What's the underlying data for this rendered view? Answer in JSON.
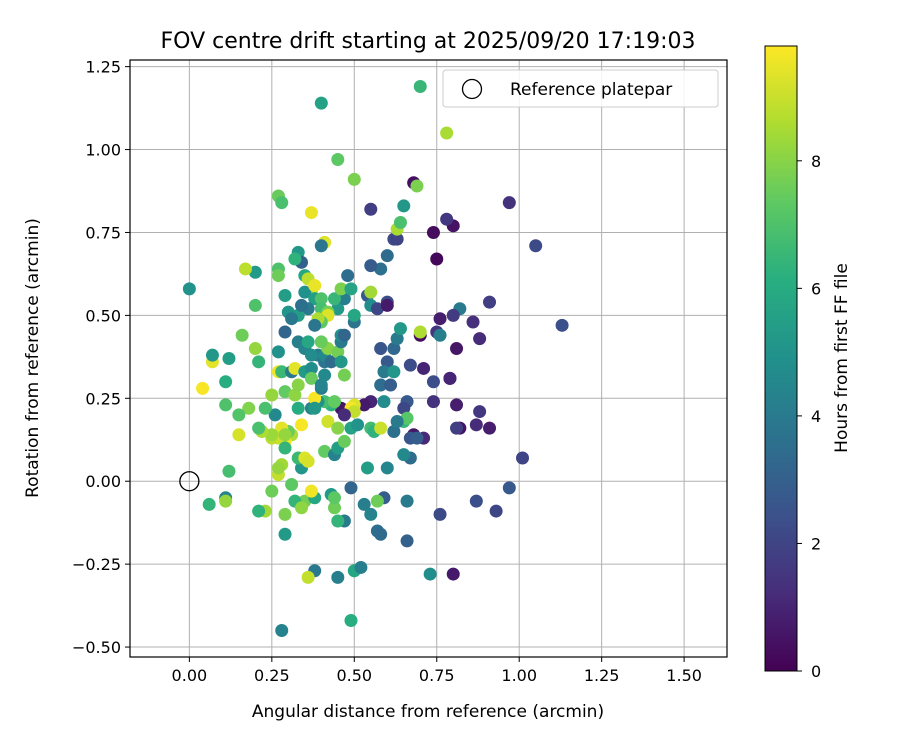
{
  "chart_data": {
    "type": "scatter",
    "title": "FOV centre drift starting at 2025/09/20 17:19:03",
    "xlabel": "Angular distance from reference (arcmin)",
    "ylabel": "Rotation from reference (arcmin)",
    "xlim": [
      -0.18,
      1.63
    ],
    "ylim": [
      -0.53,
      1.27
    ],
    "xticks": [
      0.0,
      0.25,
      0.5,
      0.75,
      1.0,
      1.25,
      1.5
    ],
    "xtick_labels": [
      "0.00",
      "0.25",
      "0.50",
      "0.75",
      "1.00",
      "1.25",
      "1.50"
    ],
    "yticks": [
      -0.5,
      -0.25,
      0.0,
      0.25,
      0.5,
      0.75,
      1.0,
      1.25
    ],
    "ytick_labels": [
      "−0.50",
      "−0.25",
      "0.00",
      "0.25",
      "0.50",
      "0.75",
      "1.00",
      "1.25"
    ],
    "grid": true,
    "legend": {
      "position": "top-right",
      "entries": [
        "Reference platepar"
      ]
    },
    "reference_point": {
      "x": 0.0,
      "y": 0.0,
      "label": "Reference platepar"
    },
    "colorbar": {
      "label": "Hours from first FF file",
      "min": 0,
      "max": 9.8,
      "ticks": [
        0,
        2,
        4,
        6,
        8
      ],
      "tick_labels": [
        "0",
        "2",
        "4",
        "6",
        "8"
      ],
      "colormap": "viridis"
    },
    "points": [
      [
        0.68,
        0.9,
        0.4
      ],
      [
        0.8,
        0.77,
        0.5
      ],
      [
        0.74,
        0.75,
        0.3
      ],
      [
        0.75,
        0.67,
        0.2
      ],
      [
        0.97,
        0.84,
        1.4
      ],
      [
        0.78,
        0.79,
        1.6
      ],
      [
        1.05,
        0.71,
        2.2
      ],
      [
        1.13,
        0.47,
        2.4
      ],
      [
        0.91,
        0.54,
        1.8
      ],
      [
        0.86,
        0.48,
        1.3
      ],
      [
        0.82,
        0.52,
        4.0
      ],
      [
        0.76,
        0.49,
        0.8
      ],
      [
        0.8,
        0.5,
        1.7
      ],
      [
        0.88,
        0.43,
        1.2
      ],
      [
        0.81,
        0.4,
        0.6
      ],
      [
        0.7,
        0.44,
        0.3
      ],
      [
        0.75,
        0.45,
        1.5
      ],
      [
        0.76,
        0.44,
        4.2
      ],
      [
        0.7,
        0.45,
        8.6
      ],
      [
        0.74,
        0.3,
        2.3
      ],
      [
        0.79,
        0.31,
        0.7
      ],
      [
        0.79,
        0.31,
        1.0
      ],
      [
        0.71,
        0.34,
        1.0
      ],
      [
        0.67,
        0.35,
        2.3
      ],
      [
        0.66,
        0.24,
        2.7
      ],
      [
        0.74,
        0.24,
        1.4
      ],
      [
        0.81,
        0.23,
        0.8
      ],
      [
        0.88,
        0.21,
        1.6
      ],
      [
        0.87,
        0.17,
        1.2
      ],
      [
        0.82,
        0.16,
        0.5
      ],
      [
        0.81,
        0.16,
        1.8
      ],
      [
        0.91,
        0.16,
        0.8
      ],
      [
        1.01,
        0.07,
        2.0
      ],
      [
        0.71,
        0.13,
        1.1
      ],
      [
        0.68,
        0.14,
        0.6
      ],
      [
        0.67,
        0.13,
        2.6
      ],
      [
        0.67,
        0.07,
        3.4
      ],
      [
        0.65,
        0.08,
        4.6
      ],
      [
        0.65,
        0.22,
        2.1
      ],
      [
        0.69,
        0.13,
        2.9
      ],
      [
        0.87,
        -0.06,
        2.4
      ],
      [
        0.97,
        -0.02,
        2.7
      ],
      [
        0.93,
        -0.09,
        2.1
      ],
      [
        0.76,
        -0.1,
        2.2
      ],
      [
        0.73,
        -0.28,
        4.8
      ],
      [
        0.8,
        -0.28,
        0.7
      ],
      [
        0.66,
        -0.18,
        3.0
      ],
      [
        0.66,
        -0.06,
        4.0
      ],
      [
        0.59,
        -0.05,
        2.9
      ],
      [
        0.57,
        -0.06,
        7.6
      ],
      [
        0.57,
        -0.15,
        3.5
      ],
      [
        0.58,
        -0.16,
        3.4
      ],
      [
        0.53,
        -0.07,
        4.2
      ],
      [
        0.55,
        -0.1,
        4.3
      ],
      [
        0.49,
        -0.02,
        3.2
      ],
      [
        0.5,
        -0.27,
        5.8
      ],
      [
        0.52,
        -0.26,
        4.2
      ],
      [
        0.45,
        -0.29,
        4.2
      ],
      [
        0.49,
        -0.42,
        6.1
      ],
      [
        0.47,
        -0.12,
        4.0
      ],
      [
        0.45,
        -0.12,
        6.4
      ],
      [
        0.38,
        -0.27,
        3.9
      ],
      [
        0.36,
        -0.29,
        8.9
      ],
      [
        0.28,
        -0.45,
        4.3
      ],
      [
        0.43,
        -0.04,
        5.3
      ],
      [
        0.44,
        -0.08,
        7.6
      ],
      [
        0.44,
        -0.05,
        7.3
      ],
      [
        0.35,
        -0.06,
        7.7
      ],
      [
        0.38,
        -0.05,
        5.8
      ],
      [
        0.37,
        -0.03,
        9.6
      ],
      [
        0.32,
        -0.06,
        6.4
      ],
      [
        0.34,
        -0.08,
        8.1
      ],
      [
        0.29,
        -0.1,
        7.8
      ],
      [
        0.29,
        -0.16,
        5.3
      ],
      [
        0.23,
        -0.09,
        8.4
      ],
      [
        0.25,
        -0.03,
        7.6
      ],
      [
        0.21,
        -0.09,
        6.3
      ],
      [
        0.31,
        -0.01,
        7.3
      ],
      [
        0.27,
        0.02,
        8.9
      ],
      [
        0.28,
        0.05,
        8.4
      ],
      [
        0.34,
        0.04,
        5.1
      ],
      [
        0.27,
        0.04,
        8.2
      ],
      [
        0.33,
        0.07,
        6.6
      ],
      [
        0.35,
        0.07,
        9.3
      ],
      [
        0.36,
        0.06,
        9.2
      ],
      [
        0.41,
        0.09,
        7.4
      ],
      [
        0.44,
        0.08,
        4.3
      ],
      [
        0.54,
        0.04,
        5.4
      ],
      [
        0.6,
        0.04,
        4.5
      ],
      [
        0.45,
        0.1,
        5.4
      ],
      [
        0.47,
        0.12,
        7.5
      ],
      [
        0.49,
        0.16,
        5.6
      ],
      [
        0.51,
        0.17,
        5.0
      ],
      [
        0.55,
        0.16,
        6.7
      ],
      [
        0.56,
        0.15,
        6.3
      ],
      [
        0.58,
        0.16,
        9.0
      ],
      [
        0.62,
        0.15,
        3.6
      ],
      [
        0.65,
        0.18,
        6.5
      ],
      [
        0.66,
        0.19,
        7.2
      ],
      [
        0.63,
        0.18,
        4.0
      ],
      [
        0.59,
        0.24,
        4.7
      ],
      [
        0.58,
        0.29,
        3.5
      ],
      [
        0.61,
        0.29,
        2.9
      ],
      [
        0.6,
        0.36,
        2.7
      ],
      [
        0.59,
        0.33,
        4.0
      ],
      [
        0.62,
        0.4,
        3.3
      ],
      [
        0.63,
        0.43,
        4.0
      ],
      [
        0.64,
        0.46,
        5.2
      ],
      [
        0.62,
        0.33,
        5.1
      ],
      [
        0.58,
        0.4,
        2.6
      ],
      [
        0.55,
        0.24,
        1.0
      ],
      [
        0.53,
        0.23,
        0.7
      ],
      [
        0.5,
        0.23,
        9.3
      ],
      [
        0.46,
        0.22,
        0.6
      ],
      [
        0.49,
        0.22,
        9.7
      ],
      [
        0.5,
        0.21,
        8.9
      ],
      [
        0.47,
        0.2,
        1.2
      ],
      [
        0.43,
        0.23,
        6.3
      ],
      [
        0.41,
        0.24,
        6.8
      ],
      [
        0.44,
        0.24,
        7.4
      ],
      [
        0.42,
        0.18,
        9.1
      ],
      [
        0.45,
        0.16,
        8.0
      ],
      [
        0.39,
        0.24,
        4.9
      ],
      [
        0.37,
        0.22,
        4.4
      ],
      [
        0.38,
        0.25,
        9.7
      ],
      [
        0.38,
        0.22,
        5.2
      ],
      [
        0.33,
        0.22,
        6.0
      ],
      [
        0.34,
        0.17,
        9.7
      ],
      [
        0.31,
        0.14,
        8.6
      ],
      [
        0.3,
        0.15,
        7.5
      ],
      [
        0.28,
        0.16,
        9.4
      ],
      [
        0.29,
        0.12,
        9.6
      ],
      [
        0.27,
        0.13,
        9.0
      ],
      [
        0.25,
        0.13,
        8.8
      ],
      [
        0.28,
        0.13,
        9.0
      ],
      [
        0.29,
        0.14,
        8.2
      ],
      [
        0.29,
        0.1,
        6.4
      ],
      [
        0.26,
        0.2,
        4.6
      ],
      [
        0.25,
        0.14,
        8.3
      ],
      [
        0.22,
        0.15,
        8.6
      ],
      [
        0.21,
        0.16,
        6.9
      ],
      [
        0.25,
        0.26,
        8.2
      ],
      [
        0.23,
        0.22,
        6.9
      ],
      [
        0.18,
        0.22,
        7.9
      ],
      [
        0.15,
        0.14,
        9.2
      ],
      [
        0.15,
        0.2,
        7.1
      ],
      [
        0.11,
        0.23,
        7.0
      ],
      [
        0.11,
        0.3,
        6.1
      ],
      [
        0.04,
        0.28,
        9.7
      ],
      [
        0.07,
        0.36,
        9.4
      ],
      [
        0.07,
        0.38,
        5.2
      ],
      [
        0.12,
        0.37,
        5.4
      ],
      [
        0.16,
        0.44,
        7.6
      ],
      [
        0.2,
        0.4,
        8.2
      ],
      [
        0.21,
        0.36,
        6.4
      ],
      [
        0.27,
        0.33,
        9.6
      ],
      [
        0.27,
        0.39,
        4.9
      ],
      [
        0.28,
        0.33,
        6.6
      ],
      [
        0.31,
        0.33,
        4.0
      ],
      [
        0.29,
        0.27,
        7.4
      ],
      [
        0.32,
        0.26,
        8.1
      ],
      [
        0.33,
        0.29,
        8.0
      ],
      [
        0.32,
        0.34,
        9.4
      ],
      [
        0.35,
        0.33,
        5.3
      ],
      [
        0.37,
        0.34,
        4.7
      ],
      [
        0.37,
        0.31,
        7.5
      ],
      [
        0.4,
        0.28,
        4.1
      ],
      [
        0.4,
        0.29,
        4.4
      ],
      [
        0.41,
        0.32,
        4.6
      ],
      [
        0.41,
        0.36,
        3.8
      ],
      [
        0.39,
        0.38,
        3.9
      ],
      [
        0.41,
        0.38,
        4.6
      ],
      [
        0.42,
        0.4,
        8.0
      ],
      [
        0.43,
        0.36,
        3.4
      ],
      [
        0.45,
        0.39,
        7.7
      ],
      [
        0.46,
        0.36,
        5.2
      ],
      [
        0.47,
        0.32,
        7.7
      ],
      [
        0.46,
        0.42,
        4.0
      ],
      [
        0.46,
        0.44,
        4.8
      ],
      [
        0.45,
        0.52,
        5.2
      ],
      [
        0.47,
        0.44,
        3.2
      ],
      [
        0.47,
        0.55,
        4.2
      ],
      [
        0.44,
        0.55,
        6.5
      ],
      [
        0.46,
        0.58,
        7.8
      ],
      [
        0.49,
        0.58,
        5.7
      ],
      [
        0.5,
        0.48,
        3.8
      ],
      [
        0.5,
        0.5,
        5.8
      ],
      [
        0.48,
        0.62,
        3.5
      ],
      [
        0.54,
        0.56,
        2.7
      ],
      [
        0.55,
        0.57,
        8.4
      ],
      [
        0.55,
        0.53,
        4.7
      ],
      [
        0.57,
        0.52,
        2.1
      ],
      [
        0.6,
        0.54,
        2.3
      ],
      [
        0.6,
        0.53,
        0.7
      ],
      [
        0.58,
        0.64,
        3.6
      ],
      [
        0.62,
        0.73,
        2.2
      ],
      [
        0.63,
        0.73,
        2.0
      ],
      [
        0.63,
        0.76,
        8.5
      ],
      [
        0.64,
        0.78,
        6.9
      ],
      [
        0.65,
        0.83,
        5.2
      ],
      [
        0.69,
        0.89,
        7.8
      ],
      [
        0.6,
        0.68,
        3.4
      ],
      [
        0.55,
        0.65,
        2.8
      ],
      [
        0.55,
        0.82,
        1.8
      ],
      [
        0.5,
        0.91,
        7.8
      ],
      [
        0.45,
        0.97,
        7.3
      ],
      [
        0.4,
        1.14,
        5.6
      ],
      [
        0.7,
        1.19,
        6.5
      ],
      [
        0.78,
        1.05,
        8.5
      ],
      [
        0.27,
        0.86,
        7.5
      ],
      [
        0.28,
        0.84,
        6.9
      ],
      [
        0.37,
        0.81,
        9.5
      ],
      [
        0.41,
        0.72,
        9.3
      ],
      [
        0.4,
        0.71,
        3.8
      ],
      [
        0.33,
        0.69,
        5.2
      ],
      [
        0.34,
        0.66,
        3.0
      ],
      [
        0.32,
        0.67,
        6.3
      ],
      [
        0.27,
        0.64,
        7.0
      ],
      [
        0.27,
        0.62,
        7.6
      ],
      [
        0.35,
        0.62,
        5.8
      ],
      [
        0.36,
        0.61,
        8.8
      ],
      [
        0.37,
        0.57,
        8.5
      ],
      [
        0.35,
        0.57,
        4.9
      ],
      [
        0.38,
        0.59,
        9.5
      ],
      [
        0.38,
        0.55,
        5.5
      ],
      [
        0.4,
        0.55,
        7.0
      ],
      [
        0.4,
        0.52,
        6.8
      ],
      [
        0.42,
        0.51,
        7.7
      ],
      [
        0.42,
        0.5,
        9.3
      ],
      [
        0.4,
        0.48,
        7.3
      ],
      [
        0.39,
        0.49,
        8.6
      ],
      [
        0.38,
        0.47,
        3.8
      ],
      [
        0.36,
        0.52,
        4.0
      ],
      [
        0.33,
        0.5,
        5.4
      ],
      [
        0.34,
        0.53,
        3.6
      ],
      [
        0.3,
        0.51,
        5.1
      ],
      [
        0.29,
        0.56,
        5.4
      ],
      [
        0.31,
        0.49,
        3.9
      ],
      [
        0.29,
        0.45,
        3.2
      ],
      [
        0.33,
        0.42,
        4.2
      ],
      [
        0.35,
        0.4,
        4.4
      ],
      [
        0.37,
        0.38,
        4.7
      ],
      [
        0.36,
        0.42,
        5.8
      ],
      [
        0.4,
        0.42,
        7.5
      ],
      [
        0.2,
        0.53,
        7.0
      ],
      [
        0.2,
        0.63,
        5.3
      ],
      [
        0.17,
        0.64,
        8.8
      ],
      [
        0.0,
        0.58,
        5.0
      ],
      [
        0.11,
        -0.05,
        4.4
      ],
      [
        0.11,
        -0.06,
        8.2
      ],
      [
        0.06,
        -0.07,
        6.4
      ],
      [
        0.12,
        0.03,
        6.8
      ]
    ]
  }
}
